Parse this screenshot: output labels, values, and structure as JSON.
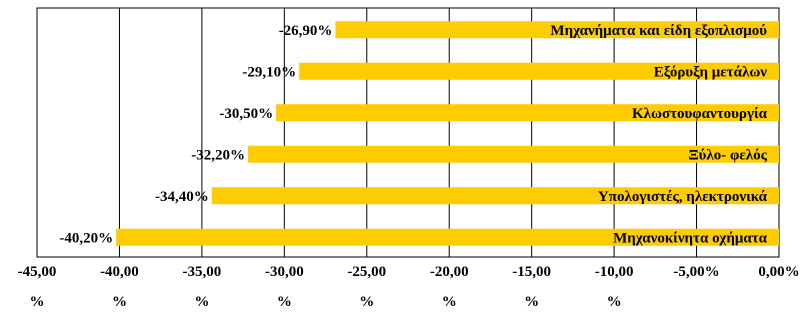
{
  "chart_data": {
    "type": "bar",
    "orientation": "horizontal",
    "categories": [
      "Μηχανήματα και είδη εξοπλισμού",
      "Εξόρυξη μετάλων",
      "Κλωστουφαντουργία",
      "Ξύλο- φελός",
      "Υπολογιστές, ηλεκτρονικά",
      "Μηχανοκίνητα οχήματα"
    ],
    "values": [
      -26.9,
      -29.1,
      -30.5,
      -32.2,
      -34.4,
      -40.2
    ],
    "data_labels": [
      "-26,90%",
      "-29,10%",
      "-30,50%",
      "-32,20%",
      "-34,40%",
      "-40,20%"
    ],
    "x_ticks": [
      -45,
      -40,
      -35,
      -30,
      -25,
      -20,
      -15,
      -10,
      -5,
      0
    ],
    "x_tick_labels": [
      [
        "-45,00",
        "%"
      ],
      [
        "-40,00",
        "%"
      ],
      [
        "-35,00",
        "%"
      ],
      [
        "-30,00",
        "%"
      ],
      [
        "-25,00",
        "%"
      ],
      [
        "-20,00",
        "%"
      ],
      [
        "-15,00",
        "%"
      ],
      [
        "-10,00",
        "%"
      ],
      [
        "-5,00%",
        ""
      ],
      [
        "0,00%",
        ""
      ]
    ],
    "xlim": [
      -45,
      0
    ],
    "grid": "vertical",
    "bar_color": "#FFCC00",
    "title": "",
    "xlabel": "",
    "ylabel": ""
  }
}
